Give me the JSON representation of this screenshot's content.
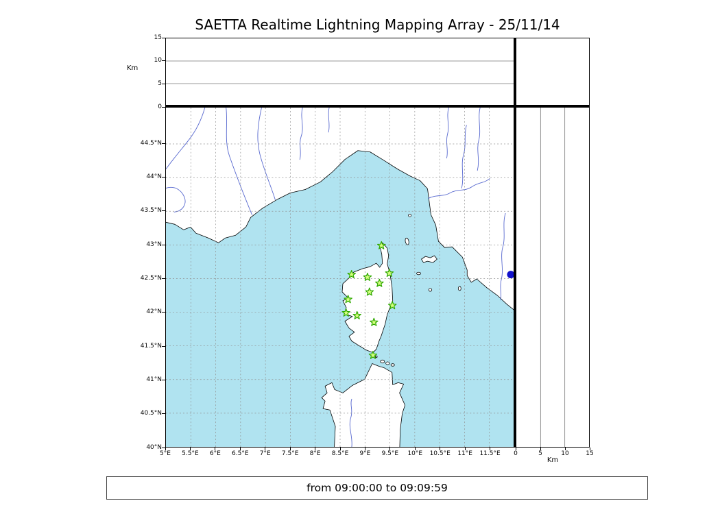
{
  "title": "SAETTA Realtime Lightning Mapping Array - 25/11/14",
  "footer": {
    "time_range": "from 09:00:00 to 09:09:59"
  },
  "map": {
    "lon_range": [
      5,
      12
    ],
    "lat_range": [
      40,
      45.04
    ],
    "lon_ticks": [
      {
        "value": 5,
        "label": "5°E"
      },
      {
        "value": 5.5,
        "label": "5.5°E"
      },
      {
        "value": 6,
        "label": "6°E"
      },
      {
        "value": 6.5,
        "label": "6.5°E"
      },
      {
        "value": 7,
        "label": "7°E"
      },
      {
        "value": 7.5,
        "label": "7.5°E"
      },
      {
        "value": 8,
        "label": "8°E"
      },
      {
        "value": 8.5,
        "label": "8.5°E"
      },
      {
        "value": 9,
        "label": "9°E"
      },
      {
        "value": 9.5,
        "label": "9.5°E"
      },
      {
        "value": 10,
        "label": "10°E"
      },
      {
        "value": 10.5,
        "label": "10.5°E"
      },
      {
        "value": 11,
        "label": "11°E"
      },
      {
        "value": 11.5,
        "label": "11.5°E"
      }
    ],
    "lat_ticks": [
      {
        "value": 44.5,
        "label": "44.5°N"
      },
      {
        "value": 44,
        "label": "44°N"
      },
      {
        "value": 43.5,
        "label": "43.5°N"
      },
      {
        "value": 43,
        "label": "43°N"
      },
      {
        "value": 42.5,
        "label": "42.5°N"
      },
      {
        "value": 42,
        "label": "42°N"
      },
      {
        "value": 41.5,
        "label": "41.5°N"
      },
      {
        "value": 41,
        "label": "41°N"
      },
      {
        "value": 40.5,
        "label": "40.5°N"
      },
      {
        "value": 40,
        "label": "40°N"
      }
    ]
  },
  "altitude": {
    "range_km": [
      0,
      15
    ],
    "ticks": [
      {
        "value": 0,
        "label": "0"
      },
      {
        "value": 5,
        "label": "5"
      },
      {
        "value": 10,
        "label": "10"
      },
      {
        "value": 15,
        "label": "15"
      }
    ],
    "gridlines_km": [
      5,
      10
    ],
    "left_axis_unit": "Km",
    "bottom_axis_unit": "Km"
  },
  "stations": [
    {
      "lon": 9.33,
      "lat": 42.99
    },
    {
      "lon": 8.73,
      "lat": 42.56
    },
    {
      "lon": 9.05,
      "lat": 42.52
    },
    {
      "lon": 9.49,
      "lat": 42.58
    },
    {
      "lon": 9.29,
      "lat": 42.43
    },
    {
      "lon": 9.09,
      "lat": 42.3
    },
    {
      "lon": 8.66,
      "lat": 42.19
    },
    {
      "lon": 9.55,
      "lat": 42.1
    },
    {
      "lon": 8.62,
      "lat": 41.99
    },
    {
      "lon": 8.84,
      "lat": 41.95
    },
    {
      "lon": 9.18,
      "lat": 41.85
    },
    {
      "lon": 9.16,
      "lat": 41.36
    }
  ],
  "event_marker": {
    "lon": 11.93,
    "lat": 42.56
  },
  "colors": {
    "sea": "#b0e3f0",
    "land": "#ffffff",
    "coast": "#000000",
    "river": "#5768cf",
    "grid": "#909090",
    "station_fill": "#d4ff7f",
    "station_edge": "#2fa800",
    "event_dot": "#1111cc"
  }
}
